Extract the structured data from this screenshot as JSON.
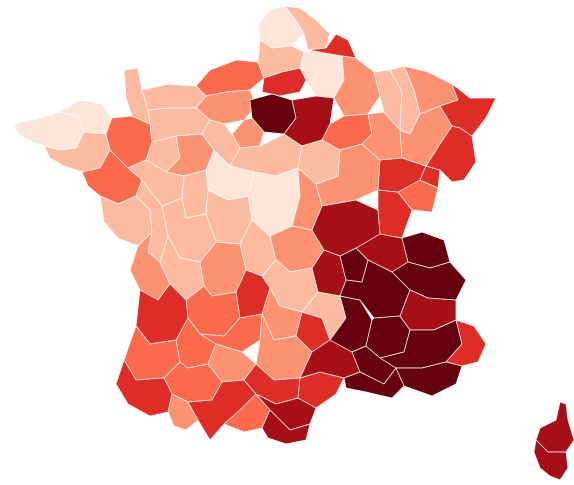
{
  "map": {
    "type": "choropleth",
    "region": "France",
    "subregions": "departements",
    "color_scale": {
      "low": "#fee5d9",
      "mid_low": "#fcbba1",
      "mid": "#fc9272",
      "mid_high": "#fb6a4a",
      "high": "#de2d26",
      "very_high": "#a50f15",
      "max": "#67000d"
    },
    "legend": null,
    "title": null
  },
  "chart_data": {
    "type": "heatmap",
    "description_levels": [
      "low",
      "mid_low",
      "mid",
      "mid_high",
      "high",
      "very_high",
      "max"
    ],
    "regions": [
      {
        "id": "finistere",
        "level": "low"
      },
      {
        "id": "cotes-darmor",
        "level": "low"
      },
      {
        "id": "morbihan",
        "level": "mid_low"
      },
      {
        "id": "ille-et-vilaine",
        "level": "mid_high"
      },
      {
        "id": "loire-atlantique",
        "level": "mid_high"
      },
      {
        "id": "vendee",
        "level": "mid_low"
      },
      {
        "id": "manche",
        "level": "mid_low"
      },
      {
        "id": "calvados",
        "level": "mid_low"
      },
      {
        "id": "orne",
        "level": "mid_low"
      },
      {
        "id": "mayenne",
        "level": "mid_low"
      },
      {
        "id": "sarthe",
        "level": "mid"
      },
      {
        "id": "maine-et-loire",
        "level": "mid_low"
      },
      {
        "id": "seine-maritime",
        "level": "mid_high"
      },
      {
        "id": "eure",
        "level": "mid"
      },
      {
        "id": "nord",
        "level": "mid_low"
      },
      {
        "id": "pas-de-calais",
        "level": "low"
      },
      {
        "id": "somme",
        "level": "mid_low"
      },
      {
        "id": "aisne",
        "level": "low"
      },
      {
        "id": "oise",
        "level": "high"
      },
      {
        "id": "ardennes",
        "level": "high"
      },
      {
        "id": "marne",
        "level": "mid"
      },
      {
        "id": "paris-region",
        "level": "max"
      },
      {
        "id": "seine-et-marne",
        "level": "very_high"
      },
      {
        "id": "essonne",
        "level": "mid"
      },
      {
        "id": "yvelines",
        "level": "mid"
      },
      {
        "id": "eure-et-loir",
        "level": "mid_low"
      },
      {
        "id": "loiret",
        "level": "mid_low"
      },
      {
        "id": "loir-et-cher",
        "level": "low"
      },
      {
        "id": "indre-et-loire",
        "level": "mid_low"
      },
      {
        "id": "cher",
        "level": "low"
      },
      {
        "id": "indre",
        "level": "mid_low"
      },
      {
        "id": "vienne",
        "level": "mid_low"
      },
      {
        "id": "deux-sevres",
        "level": "mid_low"
      },
      {
        "id": "charente-maritime",
        "level": "mid"
      },
      {
        "id": "charente",
        "level": "mid_low"
      },
      {
        "id": "haute-vienne",
        "level": "mid"
      },
      {
        "id": "creuse",
        "level": "mid_low"
      },
      {
        "id": "allier",
        "level": "mid"
      },
      {
        "id": "puy-de-dome",
        "level": "mid_low"
      },
      {
        "id": "cantal",
        "level": "mid"
      },
      {
        "id": "correze",
        "level": "high"
      },
      {
        "id": "dordogne",
        "level": "mid_high"
      },
      {
        "id": "gironde",
        "level": "high"
      },
      {
        "id": "landes",
        "level": "mid_high"
      },
      {
        "id": "lot-et-garonne",
        "level": "mid_high"
      },
      {
        "id": "lot",
        "level": "mid_high"
      },
      {
        "id": "aveyron",
        "level": "mid"
      },
      {
        "id": "tarn-et-garonne",
        "level": "mid"
      },
      {
        "id": "gers",
        "level": "mid_high"
      },
      {
        "id": "pyrenees-atlantiques",
        "level": "high"
      },
      {
        "id": "hautes-pyrenees",
        "level": "mid"
      },
      {
        "id": "haute-garonne",
        "level": "high"
      },
      {
        "id": "ariege",
        "level": "mid_high"
      },
      {
        "id": "tarn",
        "level": "high"
      },
      {
        "id": "aude",
        "level": "very_high"
      },
      {
        "id": "pyrenees-orientales",
        "level": "very_high"
      },
      {
        "id": "herault",
        "level": "high"
      },
      {
        "id": "gard",
        "level": "very_high"
      },
      {
        "id": "lozere",
        "level": "high"
      },
      {
        "id": "haute-loire",
        "level": "mid_low"
      },
      {
        "id": "loire",
        "level": "very_high"
      },
      {
        "id": "rhone",
        "level": "max"
      },
      {
        "id": "ain",
        "level": "very_high"
      },
      {
        "id": "isere",
        "level": "max"
      },
      {
        "id": "savoie",
        "level": "max"
      },
      {
        "id": "haute-savoie",
        "level": "max"
      },
      {
        "id": "drome",
        "level": "max"
      },
      {
        "id": "ardeche",
        "level": "max"
      },
      {
        "id": "vaucluse",
        "level": "max"
      },
      {
        "id": "bouches-du-rhone",
        "level": "max"
      },
      {
        "id": "var",
        "level": "max"
      },
      {
        "id": "alpes-maritimes",
        "level": "high"
      },
      {
        "id": "alpes-de-haute-provence",
        "level": "max"
      },
      {
        "id": "hautes-alpes",
        "level": "very_high"
      },
      {
        "id": "saone-et-loire",
        "level": "very_high"
      },
      {
        "id": "nievre",
        "level": "mid"
      },
      {
        "id": "yonne",
        "level": "mid_low"
      },
      {
        "id": "cote-dor",
        "level": "mid"
      },
      {
        "id": "jura",
        "level": "high"
      },
      {
        "id": "doubs",
        "level": "mid_high"
      },
      {
        "id": "haute-saone",
        "level": "high"
      },
      {
        "id": "territoire-de-belfort",
        "level": "high"
      },
      {
        "id": "haut-rhin",
        "level": "high"
      },
      {
        "id": "bas-rhin",
        "level": "high"
      },
      {
        "id": "vosges",
        "level": "mid"
      },
      {
        "id": "meurthe-et-moselle",
        "level": "mid_low"
      },
      {
        "id": "moselle",
        "level": "mid"
      },
      {
        "id": "meuse",
        "level": "mid_low"
      },
      {
        "id": "haute-marne",
        "level": "mid"
      },
      {
        "id": "aube",
        "level": "mid_high"
      },
      {
        "id": "corse",
        "level": "very_high"
      }
    ]
  }
}
